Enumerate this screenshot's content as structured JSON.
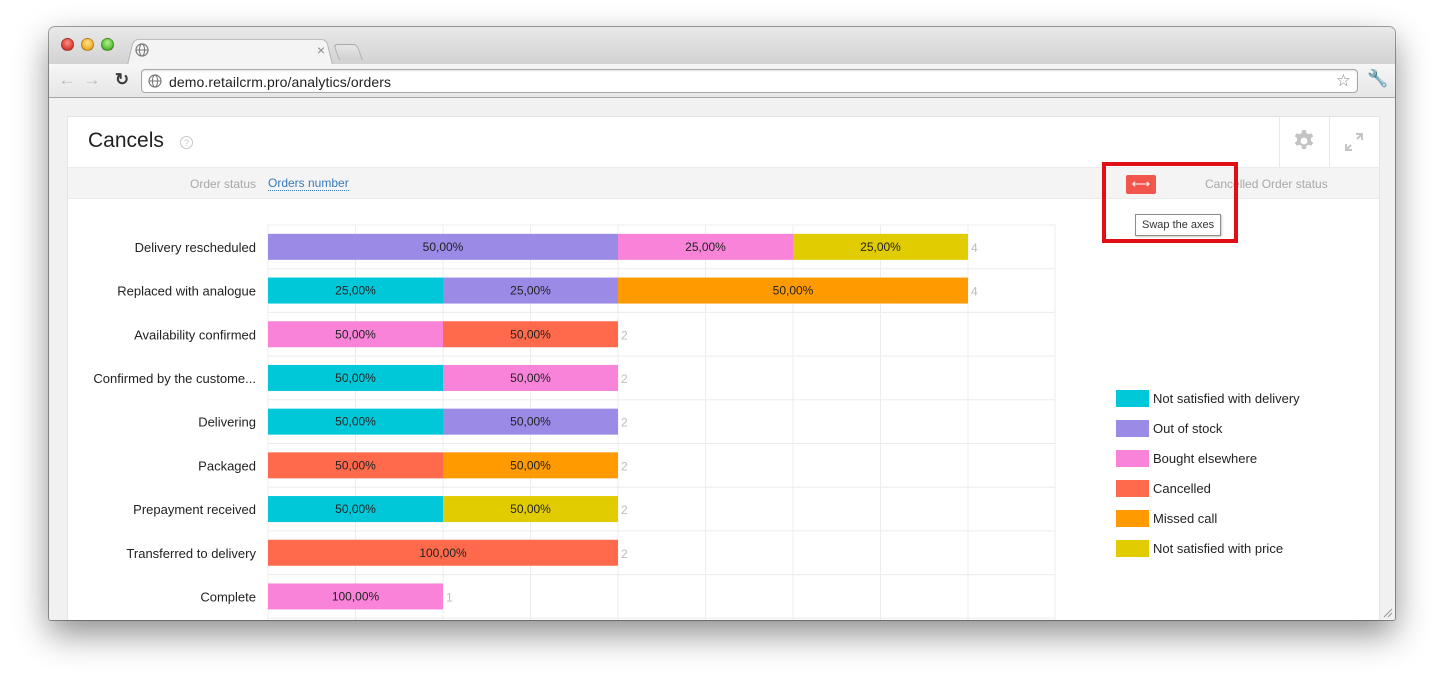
{
  "browser": {
    "url": "demo.retailcrm.pro/analytics/orders"
  },
  "widget": {
    "title": "Cancels",
    "filter_left_label": "Order status",
    "filter_left_value": "Orders number",
    "filter_right_label": "Cancelled Order status",
    "swap_tooltip": "Swap the axes",
    "highlight_color": "#e00f16",
    "swap_button_color": "#f2544e"
  },
  "chart_data": {
    "type": "bar",
    "orientation": "horizontal",
    "stacked": true,
    "percent_stacked": true,
    "categories": [
      "Delivery rescheduled",
      "Replaced with analogue",
      "Availability confirmed",
      "Confirmed by the custome...",
      "Delivering",
      "Packaged",
      "Prepayment received",
      "Transferred to delivery",
      "Complete"
    ],
    "totals": [
      4,
      4,
      2,
      2,
      2,
      2,
      2,
      2,
      1
    ],
    "series": [
      {
        "name": "Not satisfied with delivery",
        "color": "#00c8d8",
        "values": [
          0,
          1,
          0,
          1,
          1,
          0,
          1,
          0,
          0
        ]
      },
      {
        "name": "Out of stock",
        "color": "#9b8ae6",
        "values": [
          2,
          1,
          0,
          0,
          1,
          0,
          0,
          0,
          0
        ]
      },
      {
        "name": "Bought elsewhere",
        "color": "#f883d8",
        "values": [
          1,
          0,
          1,
          1,
          0,
          0,
          0,
          0,
          1
        ]
      },
      {
        "name": "Cancelled",
        "color": "#ff6a4d",
        "values": [
          0,
          0,
          1,
          0,
          0,
          1,
          0,
          2,
          0
        ]
      },
      {
        "name": "Missed call",
        "color": "#ff9a00",
        "values": [
          0,
          2,
          0,
          0,
          0,
          1,
          0,
          0,
          0
        ]
      },
      {
        "name": "Not satisfied with price",
        "color": "#e0cc00",
        "values": [
          1,
          0,
          0,
          0,
          0,
          0,
          1,
          0,
          0
        ]
      }
    ],
    "segment_labels": [
      [
        "50,00%",
        "25,00%",
        "25,00%"
      ],
      [
        "25,00%",
        "25,00%",
        "50,00%"
      ],
      [
        "50,00%",
        "50,00%"
      ],
      [
        "50,00%",
        "50,00%"
      ],
      [
        "50,00%",
        "50,00%"
      ],
      [
        "50,00%",
        "50,00%"
      ],
      [
        "50,00%",
        "50,00%"
      ],
      [
        "100,00%"
      ],
      [
        "100,00%"
      ]
    ],
    "xlim": [
      0,
      4.5
    ],
    "grid": true,
    "legend_position": "right"
  }
}
